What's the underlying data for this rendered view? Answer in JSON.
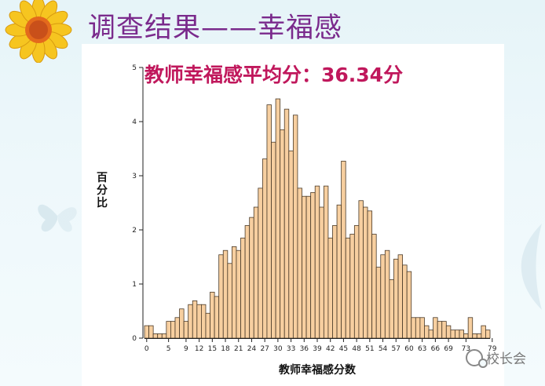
{
  "slide": {
    "title": "调查结果——幸福感",
    "watermark": "校长会"
  },
  "chart_data": {
    "type": "bar",
    "title": "教师幸福感平均分：36.34分",
    "xlabel": "教师幸福感分数",
    "ylabel": "百分比",
    "ylim": [
      0,
      5
    ],
    "yticks": [
      "0",
      "1",
      "2",
      "3",
      "4",
      "5"
    ],
    "xtick_labels": [
      "0",
      "5",
      "9",
      "12",
      "15",
      "18",
      "21",
      "24",
      "27",
      "30",
      "33",
      "36",
      "39",
      "42",
      "45",
      "48",
      "51",
      "54",
      "57",
      "60",
      "63",
      "66",
      "69",
      "73",
      "79"
    ],
    "grid": false,
    "bar_color": "#f7cfa0",
    "bar_edge_color": "#4a3a28",
    "title_color": "#c0185c",
    "values": [
      0.23,
      0.23,
      0.08,
      0.08,
      0.08,
      0.31,
      0.31,
      0.38,
      0.54,
      0.31,
      0.62,
      0.69,
      0.62,
      0.62,
      0.46,
      0.85,
      0.77,
      1.54,
      1.62,
      1.38,
      1.69,
      1.62,
      1.85,
      2.08,
      2.23,
      2.42,
      2.77,
      3.31,
      4.31,
      3.62,
      4.42,
      3.85,
      4.23,
      3.46,
      4.12,
      2.77,
      2.62,
      2.62,
      2.69,
      2.81,
      2.42,
      2.81,
      1.85,
      2.08,
      2.46,
      3.27,
      1.85,
      1.92,
      2.08,
      2.54,
      2.42,
      2.35,
      1.92,
      1.31,
      1.54,
      1.62,
      1.08,
      1.46,
      1.54,
      1.35,
      1.23,
      0.38,
      0.38,
      0.38,
      0.23,
      0.15,
      0.38,
      0.31,
      0.31,
      0.23,
      0.15,
      0.15,
      0.15,
      0.08,
      0.38,
      0.08,
      0.08,
      0.23,
      0.15
    ]
  }
}
